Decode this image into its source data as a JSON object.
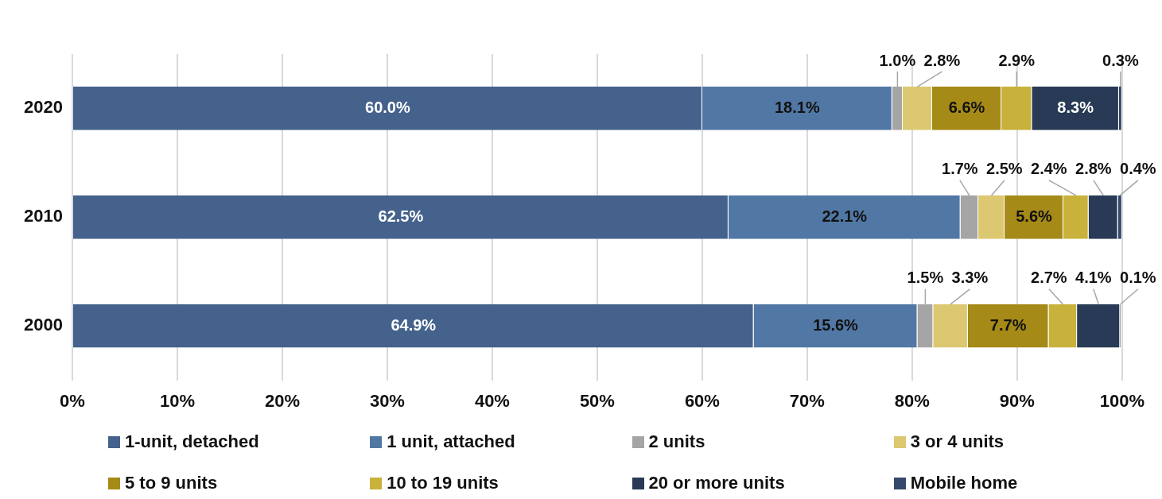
{
  "chart_data": {
    "type": "bar",
    "orientation": "horizontal",
    "stacked": true,
    "categories": [
      "2020",
      "2010",
      "2000"
    ],
    "series": [
      {
        "name": "1-unit, detached",
        "color": "#44628c",
        "values": [
          60.0,
          62.5,
          64.9
        ],
        "value_labels": [
          "60.0%",
          "62.5%",
          "64.9%"
        ]
      },
      {
        "name": "1 unit, attached",
        "color": "#5178a5",
        "values": [
          18.1,
          22.1,
          15.6
        ],
        "value_labels": [
          "18.1%",
          "22.1%",
          "15.6%"
        ]
      },
      {
        "name": "2 units",
        "color": "#a5a5a5",
        "values": [
          1.0,
          1.7,
          1.5
        ],
        "value_labels": [
          "1.0%",
          "1.7%",
          "1.5%"
        ]
      },
      {
        "name": "3 or 4 units",
        "color": "#dbc870",
        "values": [
          2.8,
          2.5,
          3.3
        ],
        "value_labels": [
          "2.8%",
          "2.5%",
          "3.3%"
        ]
      },
      {
        "name": "5 to 9 units",
        "color": "#a58a18",
        "values": [
          6.6,
          5.6,
          7.7
        ],
        "value_labels": [
          "6.6%",
          "5.6%",
          "7.7%"
        ]
      },
      {
        "name": "10 to 19 units",
        "color": "#c8b23c",
        "values": [
          2.9,
          2.4,
          2.7
        ],
        "value_labels": [
          "2.9%",
          "2.4%",
          "2.7%"
        ]
      },
      {
        "name": "20 or more units",
        "color": "#283a55",
        "values": [
          8.3,
          2.8,
          4.1
        ],
        "value_labels": [
          "8.3%",
          "2.8%",
          "4.1%"
        ]
      },
      {
        "name": "Mobile home",
        "color": "#34496b",
        "values": [
          0.3,
          0.4,
          0.1
        ],
        "value_labels": [
          "0.3%",
          "0.4%",
          "0.1%"
        ]
      }
    ],
    "xlim": [
      0,
      100
    ],
    "xticks": [
      {
        "value": 0,
        "label": "0%"
      },
      {
        "value": 10,
        "label": "10%"
      },
      {
        "value": 20,
        "label": "20%"
      },
      {
        "value": 30,
        "label": "30%"
      },
      {
        "value": 40,
        "label": "40%"
      },
      {
        "value": 50,
        "label": "50%"
      },
      {
        "value": 60,
        "label": "60%"
      },
      {
        "value": 70,
        "label": "70%"
      },
      {
        "value": 80,
        "label": "80%"
      },
      {
        "value": 90,
        "label": "90%"
      },
      {
        "value": 100,
        "label": "100%"
      }
    ],
    "grid": "x",
    "legend": "bottom"
  }
}
